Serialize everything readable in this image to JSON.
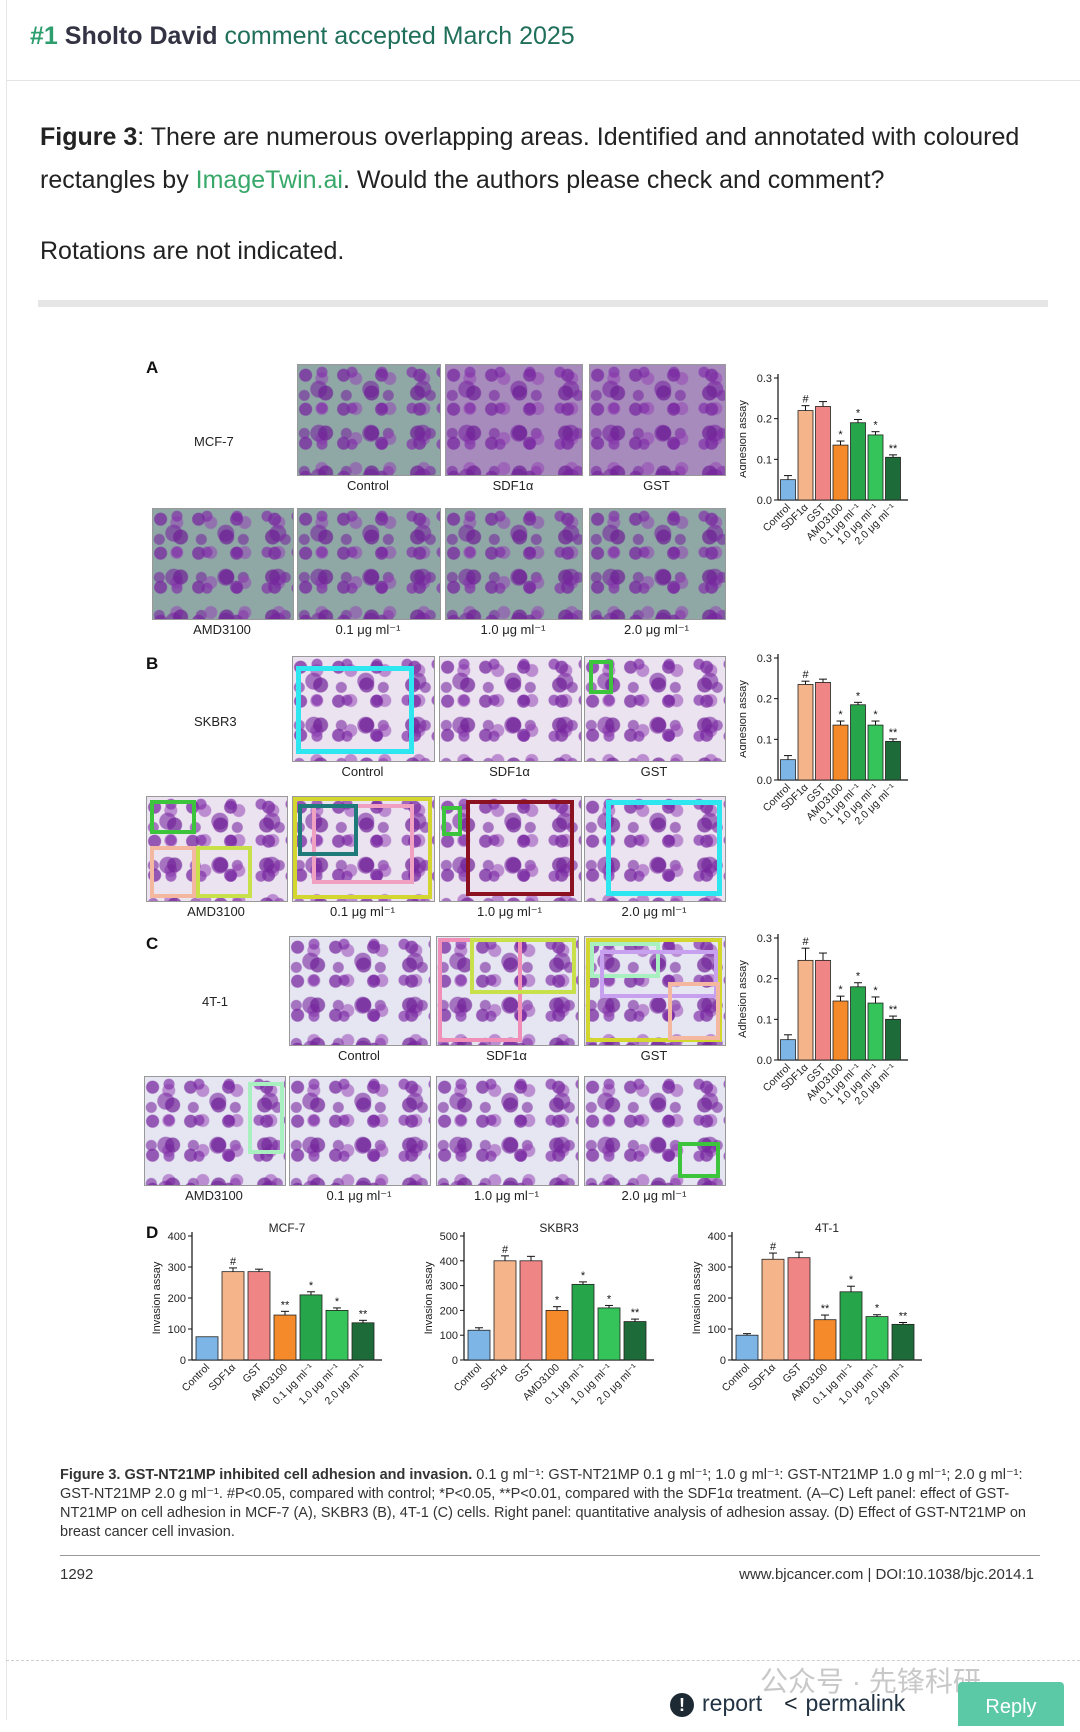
{
  "comment": {
    "number": "#1",
    "author": "Sholto David",
    "status": "comment accepted March 2025",
    "fig_ref": "Figure 3",
    "text1": ": There are numerous overlapping areas. Identified and annotated with coloured rectangles by ",
    "link": "ImageTwin.ai",
    "text2": ". Would the authors please check and comment?",
    "text3": "Rotations are not indicated."
  },
  "figure": {
    "panels": [
      "A",
      "B",
      "C",
      "D"
    ],
    "cell_lines": [
      "MCF-7",
      "SKBR3",
      "4T-1"
    ],
    "image_labels_top": [
      "Control",
      "SDF1α",
      "GST"
    ],
    "image_labels_bottom": [
      "AMD3100",
      "0.1 μg ml⁻¹",
      "1.0 μg ml⁻¹",
      "2.0 μg ml⁻¹"
    ],
    "caption_bold": "Figure 3. GST-NT21MP inhibited cell adhesion and invasion.",
    "caption_text": " 0.1 g ml⁻¹: GST-NT21MP 0.1 g ml⁻¹; 1.0 g ml⁻¹: GST-NT21MP 1.0 g ml⁻¹; 2.0 g ml⁻¹: GST-NT21MP 2.0 g ml⁻¹. #P<0.05, compared with control; *P<0.05, **P<0.01, compared with the SDF1α treatment. (A–C) Left panel: effect of GST-NT21MP on cell adhesion in MCF-7 (A), SKBR3 (B), 4T-1 (C) cells. Right panel: quantitative analysis of adhesion assay. (D) Effect of GST-NT21MP on breast cancer cell invasion.",
    "page_number": "1292",
    "doi": "www.bjcancer.com | DOI:10.1038/bjc.2014.1"
  },
  "chart_data": [
    {
      "type": "bar",
      "ylabel": "Adhesion assay",
      "ylim": [
        0,
        0.3
      ],
      "categories": [
        "Control",
        "SDF1α",
        "GST",
        "AMD3100",
        "0.1 μg ml⁻¹",
        "1.0 μg ml⁻¹",
        "2.0 μg ml⁻¹"
      ],
      "values": [
        0.05,
        0.22,
        0.23,
        0.135,
        0.19,
        0.16,
        0.105
      ],
      "errors": [
        0.01,
        0.012,
        0.012,
        0.01,
        0.008,
        0.008,
        0.006
      ],
      "marks": [
        "",
        "#",
        "",
        "*",
        "*",
        "*",
        "**"
      ],
      "ticks": [
        0,
        0.1,
        0.2,
        0.3
      ],
      "tick_labels": [
        "0.0",
        "0.1",
        "0.2",
        "0.3"
      ]
    },
    {
      "type": "bar",
      "ylabel": "Adhesion assay",
      "ylim": [
        0,
        0.3
      ],
      "categories": [
        "Control",
        "SDF1α",
        "GST",
        "AMD3100",
        "0.1 μg ml⁻¹",
        "1.0 μg ml⁻¹",
        "2.0 μg ml⁻¹"
      ],
      "values": [
        0.05,
        0.235,
        0.24,
        0.135,
        0.185,
        0.135,
        0.095
      ],
      "errors": [
        0.01,
        0.008,
        0.008,
        0.01,
        0.006,
        0.01,
        0.006
      ],
      "marks": [
        "",
        "#",
        "",
        "*",
        "*",
        "*",
        "**"
      ],
      "ticks": [
        0,
        0.1,
        0.2,
        0.3
      ],
      "tick_labels": [
        "0.0",
        "0.1",
        "0.2",
        "0.3"
      ]
    },
    {
      "type": "bar",
      "ylabel": "Adhesion assay",
      "ylim": [
        0,
        0.3
      ],
      "categories": [
        "Control",
        "SDF1α",
        "GST",
        "AMD3100",
        "0.1 μg ml⁻¹",
        "1.0 μg ml⁻¹",
        "2.0 μg ml⁻¹"
      ],
      "values": [
        0.05,
        0.245,
        0.245,
        0.145,
        0.18,
        0.14,
        0.1
      ],
      "errors": [
        0.012,
        0.03,
        0.018,
        0.012,
        0.01,
        0.015,
        0.008
      ],
      "marks": [
        "",
        "#",
        "",
        "*",
        "*",
        "*",
        "**"
      ],
      "ticks": [
        0,
        0.1,
        0.2,
        0.3
      ],
      "tick_labels": [
        "0.0",
        "0.1",
        "0.2",
        "0.3"
      ]
    },
    {
      "type": "bar",
      "title": "MCF-7",
      "ylabel": "Invasion assay",
      "ylim": [
        0,
        400
      ],
      "categories": [
        "Control",
        "SDF1α",
        "GST",
        "AMD3100",
        "0.1 μg ml⁻¹",
        "1.0 μg ml⁻¹",
        "2.0 μg ml⁻¹"
      ],
      "values": [
        75,
        285,
        285,
        145,
        210,
        160,
        120
      ],
      "errors": [
        0,
        12,
        8,
        12,
        10,
        8,
        8
      ],
      "marks": [
        "",
        "#",
        "",
        "**",
        "*",
        "*",
        "**"
      ],
      "ticks": [
        0,
        100,
        200,
        300,
        400
      ],
      "tick_labels": [
        "0",
        "100",
        "200",
        "300",
        "400"
      ]
    },
    {
      "type": "bar",
      "title": "SKBR3",
      "ylabel": "Invasion assay",
      "ylim": [
        0,
        500
      ],
      "categories": [
        "Control",
        "SDF1α",
        "GST",
        "AMD3100",
        "0.1 μg ml⁻¹",
        "1.0 μg ml⁻¹",
        "2.0 μg ml⁻¹"
      ],
      "values": [
        120,
        400,
        400,
        200,
        305,
        210,
        155
      ],
      "errors": [
        10,
        20,
        18,
        15,
        10,
        10,
        10
      ],
      "marks": [
        "",
        "#",
        "",
        "*",
        "*",
        "*",
        "**"
      ],
      "ticks": [
        0,
        100,
        200,
        300,
        400,
        500
      ],
      "tick_labels": [
        "0",
        "100",
        "200",
        "300",
        "400",
        "500"
      ]
    },
    {
      "type": "bar",
      "title": "4T-1",
      "ylabel": "Invasion assay",
      "ylim": [
        0,
        400
      ],
      "categories": [
        "Control",
        "SDF1α",
        "GST",
        "AMD3100",
        "0.1 μg ml⁻¹",
        "1.0 μg ml⁻¹",
        "2.0 μg ml⁻¹"
      ],
      "values": [
        80,
        325,
        330,
        130,
        220,
        140,
        115
      ],
      "errors": [
        5,
        20,
        18,
        15,
        18,
        6,
        6
      ],
      "marks": [
        "",
        "#",
        "",
        "**",
        "*",
        "*",
        "**"
      ],
      "ticks": [
        0,
        100,
        200,
        300,
        400
      ],
      "tick_labels": [
        "0",
        "100",
        "200",
        "300",
        "400"
      ]
    }
  ],
  "footer": {
    "watermark": "公众号 · 先锋科研",
    "report": "report",
    "permalink": "permalink",
    "reply": "Reply"
  },
  "colors": {
    "bars": [
      "#7db5e6",
      "#f5b48a",
      "#f08585",
      "#f58a2a",
      "#27a54a",
      "#34c45a",
      "#1e6b3a"
    ]
  }
}
